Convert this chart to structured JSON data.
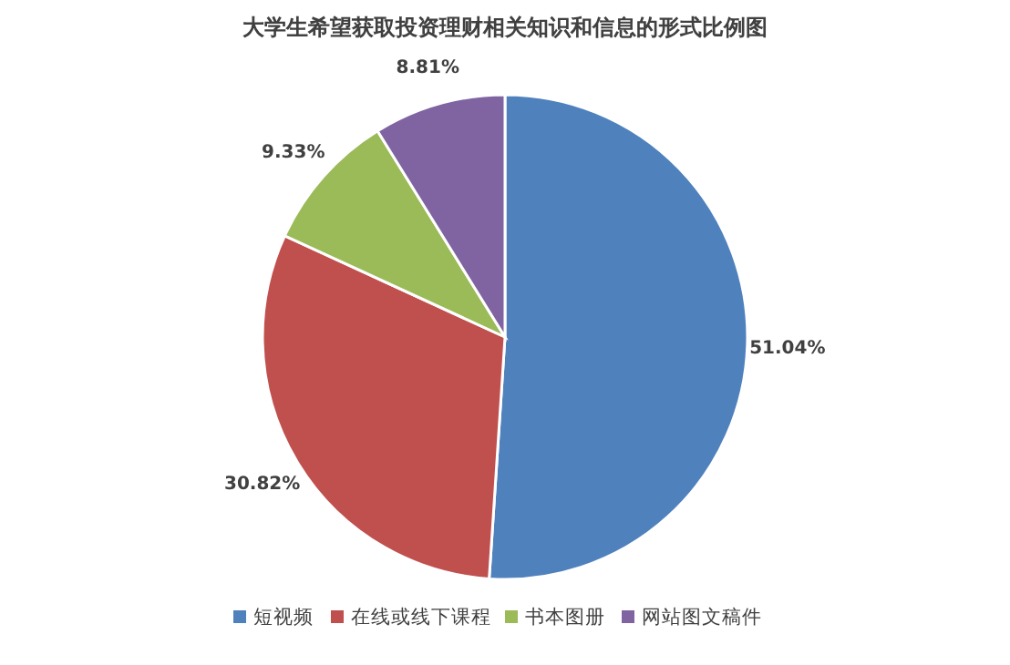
{
  "chart_data": {
    "type": "pie",
    "title": "大学生希望获取投资理财相关知识和信息的形式比例图",
    "categories": [
      "短视频",
      "在线或线下课程",
      "书本图册",
      "网站图文稿件"
    ],
    "values": [
      51.04,
      30.82,
      9.33,
      8.81
    ],
    "colors": [
      "#4f81bd",
      "#c0504d",
      "#9bbb59",
      "#8064a2"
    ],
    "value_labels": [
      "51.04%",
      "30.82%",
      "9.33%",
      "8.81%"
    ],
    "legend": "bottom"
  }
}
